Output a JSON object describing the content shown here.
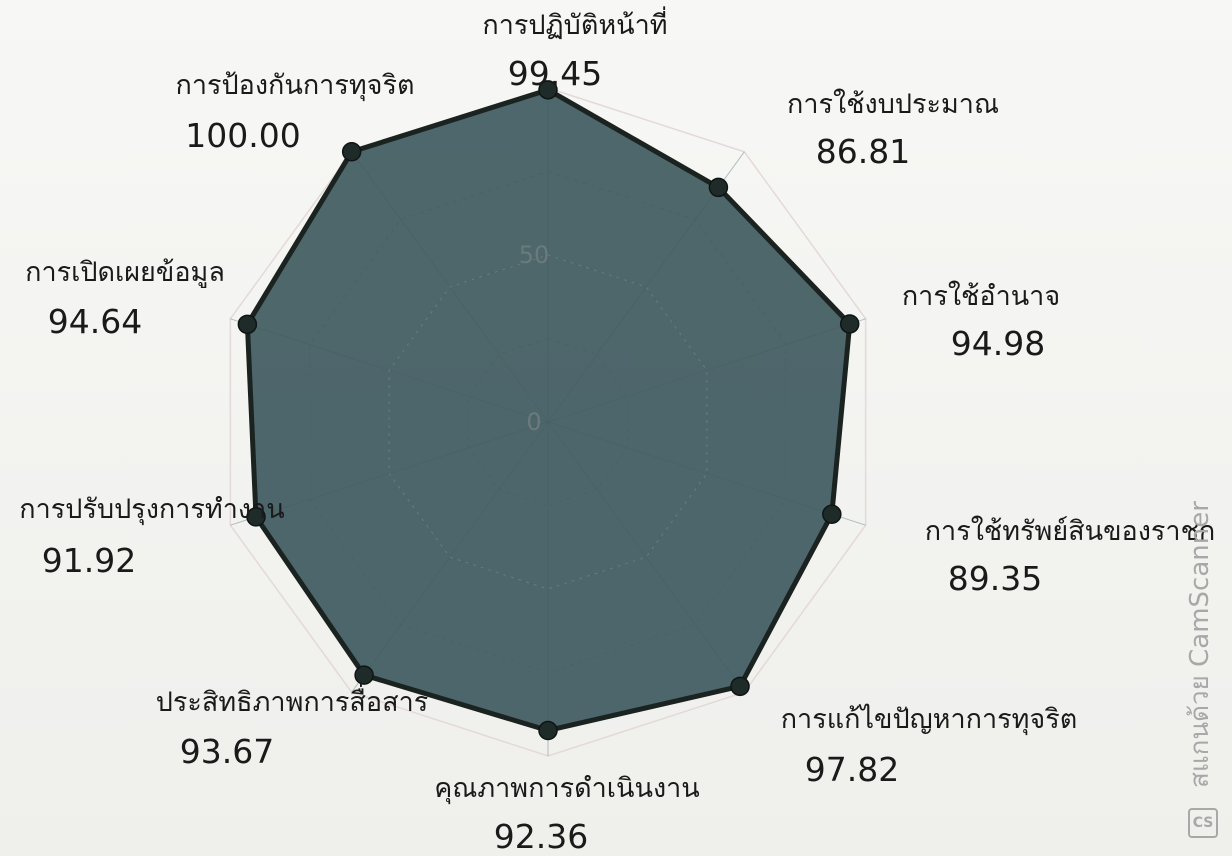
{
  "chart_data": {
    "type": "radar",
    "title": "",
    "categories": [
      "การปฏิบัติหน้าที่",
      "การใช้งบประมาณ",
      "การใช้อำนาจ",
      "การใช้ทรัพย์สินของราชก",
      "การแก้ไขปัญหาการทุจริต",
      "คุณภาพการดำเนินงาน",
      "ประสิทธิภาพการสื่อสาร",
      "การปรับปรุงการทำงาน",
      "การเปิดเผยข้อมูล",
      "การป้องกันการทุจริต"
    ],
    "value_labels": [
      "99.45",
      "86.81",
      "94.98",
      "89.35",
      "97.82",
      "92.36",
      "93.67",
      "91.92",
      "94.64",
      "100.00"
    ],
    "values": [
      99.45,
      86.81,
      94.98,
      89.35,
      97.82,
      92.36,
      93.67,
      91.92,
      94.64,
      100.0
    ],
    "radial_range": [
      0,
      100
    ],
    "radial_ticks": [
      "0",
      "50"
    ],
    "fill_color": "#3f5a60",
    "line_color": "#1b2320",
    "marker_color": "#1f2b28",
    "grid": true
  },
  "watermark": {
    "text": "สแกนด้วย CamScanner",
    "logo": "CS",
    "color": "#a8a8a8"
  }
}
